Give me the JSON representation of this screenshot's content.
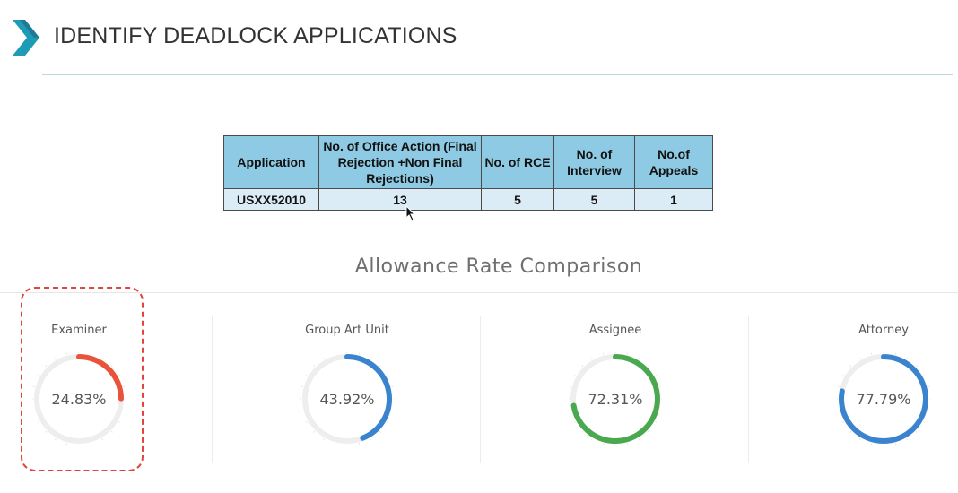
{
  "header": {
    "title": "IDENTIFY DEADLOCK APPLICATIONS"
  },
  "application_table": {
    "columns": [
      "Application",
      "No. of Office Action (Final Rejection +Non Final Rejections)",
      "No. of RCE",
      "No. of Interview",
      "No.of Appeals"
    ],
    "rows": [
      [
        "USXX52010",
        "13",
        "5",
        "5",
        "1"
      ]
    ]
  },
  "allowance": {
    "title": "Allowance Rate Comparison",
    "gauges": [
      {
        "label": "Examiner",
        "value_text": "24.83%",
        "value": 24.83,
        "color": "#e8533a"
      },
      {
        "label": "Group Art Unit",
        "value_text": "43.92%",
        "value": 43.92,
        "color": "#3a84cf"
      },
      {
        "label": "Assignee",
        "value_text": "72.31%",
        "value": 72.31,
        "color": "#4aa84e"
      },
      {
        "label": "Attorney",
        "value_text": "77.79%",
        "value": 77.79,
        "color": "#3a84cf"
      }
    ]
  },
  "colors": {
    "accent_teal": "#1f9bb5",
    "accent_dark": "#1d5f7a",
    "table_header": "#8ecae3",
    "highlight": "#e0443a"
  }
}
